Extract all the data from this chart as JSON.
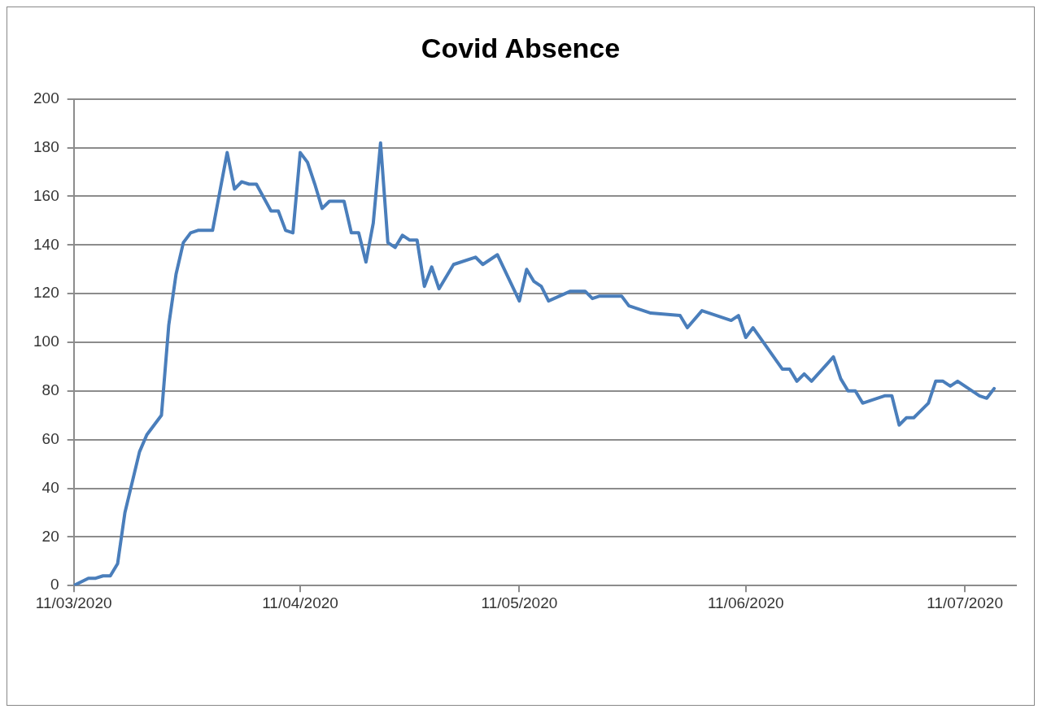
{
  "chart_data": {
    "type": "line",
    "title": "Covid Absence",
    "x": [
      "2020-03-11",
      "2020-03-13",
      "2020-03-14",
      "2020-03-15",
      "2020-03-16",
      "2020-03-17",
      "2020-03-18",
      "2020-03-20",
      "2020-03-21",
      "2020-03-23",
      "2020-03-24",
      "2020-03-25",
      "2020-03-26",
      "2020-03-27",
      "2020-03-28",
      "2020-03-30",
      "2020-04-01",
      "2020-04-02",
      "2020-04-03",
      "2020-04-04",
      "2020-04-05",
      "2020-04-07",
      "2020-04-08",
      "2020-04-09",
      "2020-04-10",
      "2020-04-11",
      "2020-04-12",
      "2020-04-13",
      "2020-04-14",
      "2020-04-15",
      "2020-04-17",
      "2020-04-18",
      "2020-04-19",
      "2020-04-20",
      "2020-04-21",
      "2020-04-22",
      "2020-04-23",
      "2020-04-24",
      "2020-04-25",
      "2020-04-26",
      "2020-04-27",
      "2020-04-28",
      "2020-04-29",
      "2020-04-30",
      "2020-05-02",
      "2020-05-05",
      "2020-05-06",
      "2020-05-08",
      "2020-05-11",
      "2020-05-12",
      "2020-05-13",
      "2020-05-14",
      "2020-05-15",
      "2020-05-18",
      "2020-05-20",
      "2020-05-21",
      "2020-05-22",
      "2020-05-25",
      "2020-05-26",
      "2020-05-27",
      "2020-05-29",
      "2020-06-02",
      "2020-06-03",
      "2020-06-05",
      "2020-06-09",
      "2020-06-10",
      "2020-06-11",
      "2020-06-12",
      "2020-06-16",
      "2020-06-17",
      "2020-06-18",
      "2020-06-19",
      "2020-06-20",
      "2020-06-23",
      "2020-06-24",
      "2020-06-25",
      "2020-06-26",
      "2020-06-27",
      "2020-06-30",
      "2020-07-01",
      "2020-07-02",
      "2020-07-03",
      "2020-07-04",
      "2020-07-06",
      "2020-07-07",
      "2020-07-08",
      "2020-07-09",
      "2020-07-10",
      "2020-07-13",
      "2020-07-14",
      "2020-07-15"
    ],
    "series": [
      {
        "color": "#4a7ebb",
        "values": [
          0,
          3,
          3,
          4,
          4,
          9,
          30,
          55,
          62,
          70,
          107,
          128,
          141,
          145,
          146,
          146,
          178,
          163,
          166,
          165,
          165,
          154,
          154,
          146,
          145,
          178,
          174,
          165,
          155,
          158,
          158,
          145,
          145,
          133,
          149,
          182,
          141,
          139,
          144,
          142,
          142,
          123,
          131,
          122,
          132,
          135,
          132,
          136,
          117,
          130,
          125,
          123,
          117,
          121,
          121,
          118,
          119,
          119,
          115,
          114,
          112,
          111,
          106,
          113,
          109,
          111,
          102,
          106,
          89,
          89,
          84,
          87,
          84,
          94,
          85,
          80,
          80,
          75,
          78,
          78,
          66,
          69,
          69,
          75,
          84,
          84,
          82,
          84,
          78,
          77,
          81
        ]
      }
    ],
    "xlim": [
      "2020-03-11",
      "2020-07-18"
    ],
    "xticks": [
      {
        "value": "2020-03-11",
        "label": "11/03/2020"
      },
      {
        "value": "2020-04-11",
        "label": "11/04/2020"
      },
      {
        "value": "2020-05-11",
        "label": "11/05/2020"
      },
      {
        "value": "2020-06-11",
        "label": "11/06/2020"
      },
      {
        "value": "2020-07-11",
        "label": "11/07/2020"
      }
    ],
    "ylim": [
      0,
      200
    ],
    "yticks": [
      0,
      20,
      40,
      60,
      80,
      100,
      120,
      140,
      160,
      180,
      200
    ],
    "grid": "y",
    "legend": false,
    "marker": "none",
    "line_style": "solid"
  }
}
